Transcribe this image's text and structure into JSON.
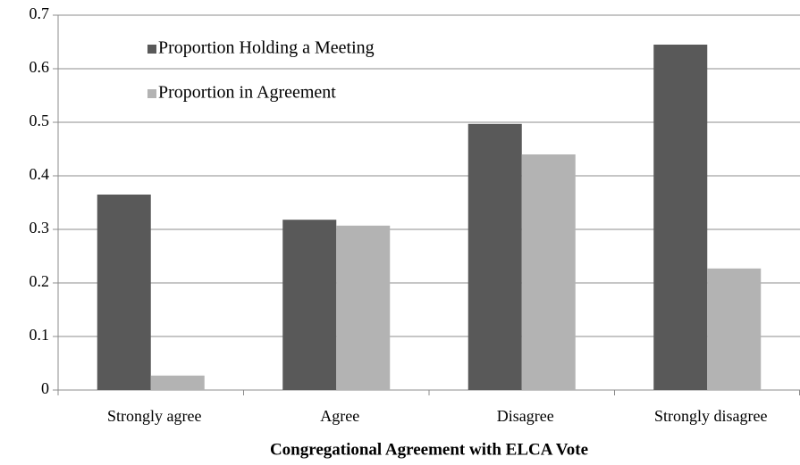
{
  "chart_data": {
    "type": "bar",
    "x_label": "Congregational Agreement with ELCA Vote",
    "categories": [
      "Strongly agree",
      "Agree",
      "Disagree",
      "Strongly disagree"
    ],
    "series": [
      {
        "name": "Proportion Holding a Meeting",
        "color": "#595959",
        "values": [
          0.365,
          0.318,
          0.497,
          0.645
        ]
      },
      {
        "name": "Proportion in Agreement",
        "color": "#b3b3b3",
        "values": [
          0.027,
          0.307,
          0.44,
          0.227
        ]
      }
    ],
    "ylim": [
      0,
      0.7
    ],
    "yticks": [
      0,
      0.1,
      0.2,
      0.3,
      0.4,
      0.5,
      0.6,
      0.7
    ],
    "grid": true,
    "legend": "upper left"
  }
}
